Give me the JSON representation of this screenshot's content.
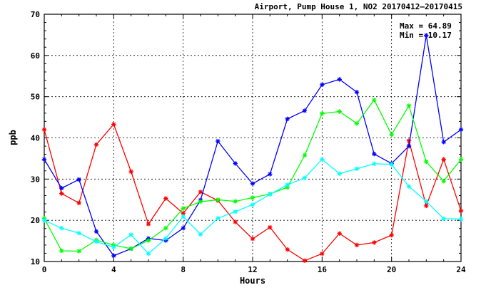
{
  "chart_data": {
    "type": "line",
    "title": "Airport, Pump House 1, NO2 20170412–20170415",
    "xlabel": "Hours",
    "ylabel": "ppb",
    "xlim": [
      0,
      24
    ],
    "ylim": [
      10,
      70
    ],
    "xticks": [
      0,
      4,
      8,
      12,
      16,
      20,
      24
    ],
    "yticks": [
      10,
      20,
      30,
      40,
      50,
      60,
      70
    ],
    "grid": true,
    "annotations": [
      "Max = 64.89",
      "Min = 10.17"
    ],
    "series": [
      {
        "color": "#ff0000",
        "x": [
          0,
          1,
          2,
          3,
          4,
          5,
          6,
          7,
          8,
          9,
          10,
          11,
          12,
          13,
          14,
          15,
          16,
          17,
          18,
          19,
          20,
          21,
          22,
          23,
          24
        ],
        "y": [
          42.0,
          26.5,
          24.2,
          38.4,
          43.3,
          31.8,
          19.1,
          25.3,
          21.7,
          26.9,
          24.8,
          19.6,
          15.5,
          18.3,
          12.9,
          10.2,
          11.9,
          16.8,
          14.0,
          14.6,
          16.4,
          39.3,
          23.5,
          34.8,
          22.3
        ]
      },
      {
        "color": "#0000ff",
        "x": [
          0,
          1,
          2,
          3,
          4,
          5,
          6,
          7,
          8,
          9,
          10,
          11,
          12,
          13,
          14,
          15,
          16,
          17,
          18,
          19,
          20,
          21,
          22,
          23,
          24
        ],
        "y": [
          34.8,
          27.8,
          29.9,
          17.3,
          11.4,
          13.1,
          15.6,
          15.1,
          18.1,
          24.9,
          39.2,
          33.8,
          28.9,
          31.2,
          44.6,
          46.6,
          52.9,
          54.2,
          51.1,
          36.1,
          33.8,
          38.0,
          64.89,
          39.0,
          42.0
        ]
      },
      {
        "color": "#00ff00",
        "x": [
          0,
          1,
          2,
          3,
          4,
          5,
          6,
          7,
          8,
          9,
          10,
          11,
          12,
          13,
          14,
          15,
          16,
          17,
          18,
          19,
          20,
          21,
          22,
          23,
          24
        ],
        "y": [
          20.5,
          12.6,
          12.5,
          15.2,
          14.0,
          13.1,
          15.1,
          18.1,
          22.9,
          24.5,
          25.0,
          24.6,
          25.5,
          26.4,
          28.0,
          35.8,
          45.9,
          46.4,
          43.5,
          49.2,
          40.8,
          47.8,
          34.2,
          29.5,
          34.8
        ]
      },
      {
        "color": "#00ffff",
        "x": [
          0,
          1,
          2,
          3,
          4,
          5,
          6,
          7,
          8,
          9,
          10,
          11,
          12,
          13,
          14,
          15,
          16,
          17,
          18,
          19,
          20,
          21,
          22,
          23,
          24
        ],
        "y": [
          20.0,
          18.1,
          16.9,
          14.8,
          13.5,
          16.5,
          11.9,
          15.6,
          20.9,
          16.6,
          20.5,
          22.1,
          23.8,
          26.3,
          28.6,
          30.3,
          34.8,
          31.3,
          32.5,
          33.7,
          33.6,
          28.2,
          24.6,
          20.4,
          20.3
        ]
      }
    ]
  }
}
